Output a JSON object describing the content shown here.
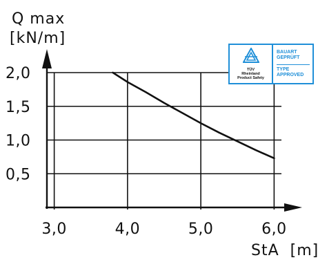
{
  "chart_data": {
    "type": "line",
    "ylabel_line1": "Q max",
    "ylabel_line2": "[kN/m]",
    "xlabel": "StA  [m]",
    "xlim": [
      2.9,
      6.1
    ],
    "ylim": [
      0.0,
      2.0
    ],
    "x_ticks": [
      3.0,
      4.0,
      5.0,
      6.0
    ],
    "x_tick_labels": [
      "3,0",
      "4,0",
      "5,0",
      "6,0"
    ],
    "y_ticks": [
      0.5,
      1.0,
      1.5,
      2.0
    ],
    "y_tick_labels": [
      "0,5",
      "1,0",
      "1,5",
      "2,0"
    ],
    "grid": true,
    "series": [
      {
        "x": [
          3.8,
          4.0,
          4.25,
          4.5,
          4.75,
          5.0,
          5.25,
          5.5,
          5.75,
          6.0
        ],
        "y": [
          2.0,
          1.86,
          1.71,
          1.55,
          1.4,
          1.25,
          1.11,
          0.98,
          0.85,
          0.73
        ]
      }
    ]
  },
  "badge": {
    "brand_line1": "TÜV",
    "brand_line2": "Rheinland",
    "brand_line3": "Product Safety",
    "line1": "BAUART",
    "line2": "GEPRÜFT",
    "line3": "TYPE",
    "line4": "APPROVED",
    "color": "#1f8fd8"
  },
  "colors": {
    "ink": "#111111",
    "accent": "#1f8fd8"
  }
}
